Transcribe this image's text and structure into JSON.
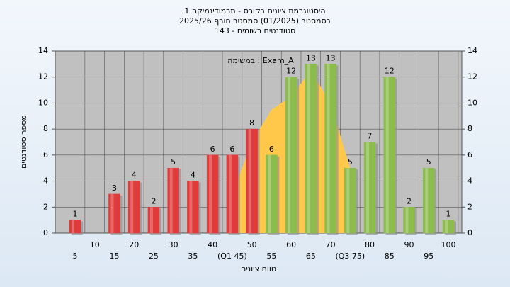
{
  "chart_data": {
    "type": "bar",
    "title": [
      "היסטוגרמת ציונים בקורס - תרמודינמיקה 1",
      "בסמסטר  (01/2025)  סמסטר חורף 2025/26",
      "סטודנטים רשומים - 143"
    ],
    "annotation": "במשימה : Exam_A",
    "x_label": "טווח ציונים",
    "y_label": "מספר סטודנטים",
    "categories": [
      "5",
      "10",
      "15",
      "20",
      "25",
      "30",
      "35",
      "40",
      "(Q1 45)",
      "50",
      "55",
      "60",
      "65",
      "70",
      "(Q3 75)",
      "80",
      "85",
      "90",
      "95",
      "100"
    ],
    "values": [
      1,
      0,
      3,
      4,
      2,
      5,
      4,
      6,
      6,
      8,
      6,
      12,
      13,
      13,
      5,
      7,
      12,
      2,
      5,
      1
    ],
    "value_labels": [
      "1",
      null,
      "3",
      "4",
      "2",
      "5",
      "4",
      "6",
      "6",
      "8",
      "6",
      "12",
      "13",
      "13",
      "5",
      "7",
      "12",
      "2",
      "5",
      "1"
    ],
    "colors": [
      "#e03a3a",
      "#e03a3a",
      "#e03a3a",
      "#e03a3a",
      "#e03a3a",
      "#e03a3a",
      "#e03a3a",
      "#e03a3a",
      "#e03a3a",
      "#e03a3a",
      "#8cbc4c",
      "#8cbc4c",
      "#8cbc4c",
      "#8cbc4c",
      "#8cbc4c",
      "#8cbc4c",
      "#8cbc4c",
      "#8cbc4c",
      "#8cbc4c",
      "#8cbc4c"
    ],
    "area_values": [
      null,
      null,
      null,
      null,
      null,
      null,
      null,
      null,
      3,
      7,
      9.5,
      10.5,
      12.5,
      10,
      5,
      null,
      null,
      null,
      null,
      null
    ],
    "area_color": "#ffc84a",
    "ylim": [
      0,
      14
    ],
    "yticks": [
      0,
      2,
      4,
      6,
      8,
      10,
      12,
      14
    ],
    "y2lim": [
      0,
      14
    ],
    "y2ticks": [
      0,
      2,
      4,
      6,
      8,
      10,
      12,
      14
    ],
    "grid": true
  }
}
